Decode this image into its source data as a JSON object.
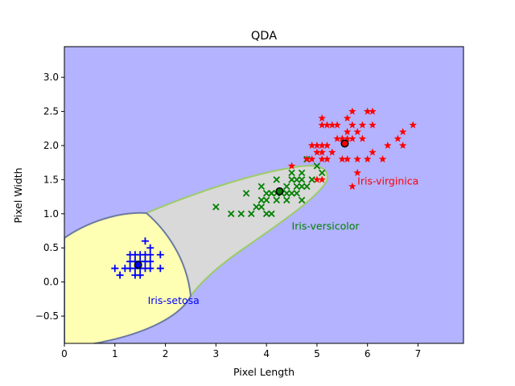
{
  "chart_data": {
    "type": "scatter",
    "title": "QDA",
    "xlabel": "Pixel Length",
    "ylabel": "Pixel Width",
    "xlim": [
      0,
      7.9
    ],
    "ylim": [
      -0.9,
      3.45
    ],
    "xticks": [
      "0",
      "1",
      "2",
      "3",
      "4",
      "5",
      "6",
      "7"
    ],
    "yticks": [
      "−0.5",
      "0.0",
      "0.5",
      "1.0",
      "1.5",
      "2.0",
      "2.5",
      "3.0"
    ],
    "grid": false,
    "background_region_color": "#b3b3ff",
    "regions": [
      {
        "name": "Iris-versicolor",
        "color": "#d9d9d9"
      },
      {
        "name": "Iris-setosa",
        "color": "#ffffb3"
      }
    ],
    "series": [
      {
        "name": "Iris-setosa",
        "marker": "+",
        "color": "#0000ff",
        "label_position": [
          1.65,
          -0.32
        ],
        "mean": [
          1.46,
          0.25
        ],
        "points": [
          [
            1.0,
            0.2
          ],
          [
            1.1,
            0.1
          ],
          [
            1.2,
            0.2
          ],
          [
            1.3,
            0.2
          ],
          [
            1.3,
            0.3
          ],
          [
            1.3,
            0.4
          ],
          [
            1.4,
            0.1
          ],
          [
            1.4,
            0.2
          ],
          [
            1.4,
            0.3
          ],
          [
            1.5,
            0.1
          ],
          [
            1.5,
            0.2
          ],
          [
            1.5,
            0.3
          ],
          [
            1.5,
            0.4
          ],
          [
            1.6,
            0.2
          ],
          [
            1.6,
            0.4
          ],
          [
            1.6,
            0.6
          ],
          [
            1.7,
            0.2
          ],
          [
            1.7,
            0.3
          ],
          [
            1.7,
            0.4
          ],
          [
            1.7,
            0.5
          ],
          [
            1.9,
            0.2
          ],
          [
            1.9,
            0.4
          ],
          [
            1.6,
            0.3
          ],
          [
            1.4,
            0.4
          ]
        ]
      },
      {
        "name": "Iris-versicolor",
        "marker": "x",
        "color": "#008000",
        "label_position": [
          4.5,
          0.77
        ],
        "mean": [
          4.26,
          1.33
        ],
        "points": [
          [
            3.0,
            1.1
          ],
          [
            3.3,
            1.0
          ],
          [
            3.5,
            1.0
          ],
          [
            3.6,
            1.3
          ],
          [
            3.7,
            1.0
          ],
          [
            3.8,
            1.1
          ],
          [
            3.9,
            1.1
          ],
          [
            3.9,
            1.2
          ],
          [
            3.9,
            1.4
          ],
          [
            4.0,
            1.0
          ],
          [
            4.0,
            1.2
          ],
          [
            4.0,
            1.3
          ],
          [
            4.1,
            1.0
          ],
          [
            4.1,
            1.3
          ],
          [
            4.2,
            1.2
          ],
          [
            4.2,
            1.3
          ],
          [
            4.2,
            1.5
          ],
          [
            4.3,
            1.3
          ],
          [
            4.4,
            1.2
          ],
          [
            4.4,
            1.3
          ],
          [
            4.4,
            1.4
          ],
          [
            4.5,
            1.3
          ],
          [
            4.5,
            1.5
          ],
          [
            4.5,
            1.6
          ],
          [
            4.6,
            1.3
          ],
          [
            4.6,
            1.4
          ],
          [
            4.6,
            1.5
          ],
          [
            4.7,
            1.2
          ],
          [
            4.7,
            1.4
          ],
          [
            4.7,
            1.5
          ],
          [
            4.7,
            1.6
          ],
          [
            4.8,
            1.4
          ],
          [
            4.8,
            1.8
          ],
          [
            4.9,
            1.5
          ],
          [
            5.0,
            1.7
          ],
          [
            5.1,
            1.6
          ],
          [
            4.4,
            1.3
          ],
          [
            4.1,
            1.3
          ]
        ]
      },
      {
        "name": "Iris-virginica",
        "marker": "*",
        "color": "#ff0000",
        "label_position": [
          5.8,
          1.43
        ],
        "mean": [
          5.55,
          2.03
        ],
        "points": [
          [
            4.5,
            1.7
          ],
          [
            4.8,
            1.8
          ],
          [
            4.9,
            1.8
          ],
          [
            4.9,
            2.0
          ],
          [
            5.0,
            1.5
          ],
          [
            5.0,
            1.9
          ],
          [
            5.0,
            2.0
          ],
          [
            5.1,
            1.5
          ],
          [
            5.1,
            1.8
          ],
          [
            5.1,
            1.9
          ],
          [
            5.1,
            2.0
          ],
          [
            5.1,
            2.3
          ],
          [
            5.1,
            2.4
          ],
          [
            5.2,
            2.0
          ],
          [
            5.2,
            2.3
          ],
          [
            5.3,
            1.9
          ],
          [
            5.3,
            2.3
          ],
          [
            5.4,
            2.1
          ],
          [
            5.4,
            2.3
          ],
          [
            5.5,
            1.8
          ],
          [
            5.5,
            2.1
          ],
          [
            5.6,
            1.8
          ],
          [
            5.6,
            2.1
          ],
          [
            5.6,
            2.2
          ],
          [
            5.6,
            2.4
          ],
          [
            5.7,
            1.4
          ],
          [
            5.7,
            2.1
          ],
          [
            5.7,
            2.3
          ],
          [
            5.7,
            2.5
          ],
          [
            5.8,
            1.6
          ],
          [
            5.8,
            1.8
          ],
          [
            5.8,
            2.2
          ],
          [
            5.9,
            2.1
          ],
          [
            5.9,
            2.3
          ],
          [
            6.0,
            1.8
          ],
          [
            6.0,
            2.5
          ],
          [
            6.1,
            1.9
          ],
          [
            6.1,
            2.3
          ],
          [
            6.1,
            2.5
          ],
          [
            6.3,
            1.8
          ],
          [
            6.4,
            2.0
          ],
          [
            6.6,
            2.1
          ],
          [
            6.7,
            2.0
          ],
          [
            6.7,
            2.2
          ],
          [
            6.9,
            2.3
          ],
          [
            5.5,
            2.1
          ],
          [
            5.2,
            1.8
          ]
        ]
      }
    ]
  }
}
